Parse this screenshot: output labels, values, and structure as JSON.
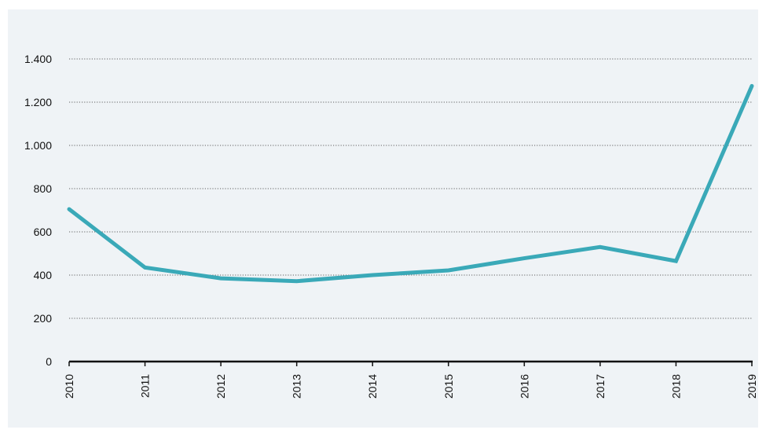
{
  "chart_data": {
    "type": "line",
    "title": "",
    "xlabel": "",
    "ylabel": "",
    "categories": [
      "2010",
      "2011",
      "2012",
      "2013",
      "2014",
      "2015",
      "2016",
      "2017",
      "2018",
      "2019"
    ],
    "series": [
      {
        "color": "#3aa9b8",
        "values": [
          705,
          435,
          385,
          372,
          400,
          422,
          478,
          530,
          465,
          1275
        ]
      }
    ],
    "ylim": [
      0,
      1400
    ],
    "yticks": [
      0,
      200,
      400,
      600,
      800,
      1000,
      1200,
      1400
    ],
    "ytick_labels": [
      "0",
      "200",
      "400",
      "600",
      "800",
      "1.000",
      "1.200",
      "1.400"
    ],
    "grid": "horizontal-dotted",
    "legend": "none",
    "background_color": "#eff3f6"
  }
}
